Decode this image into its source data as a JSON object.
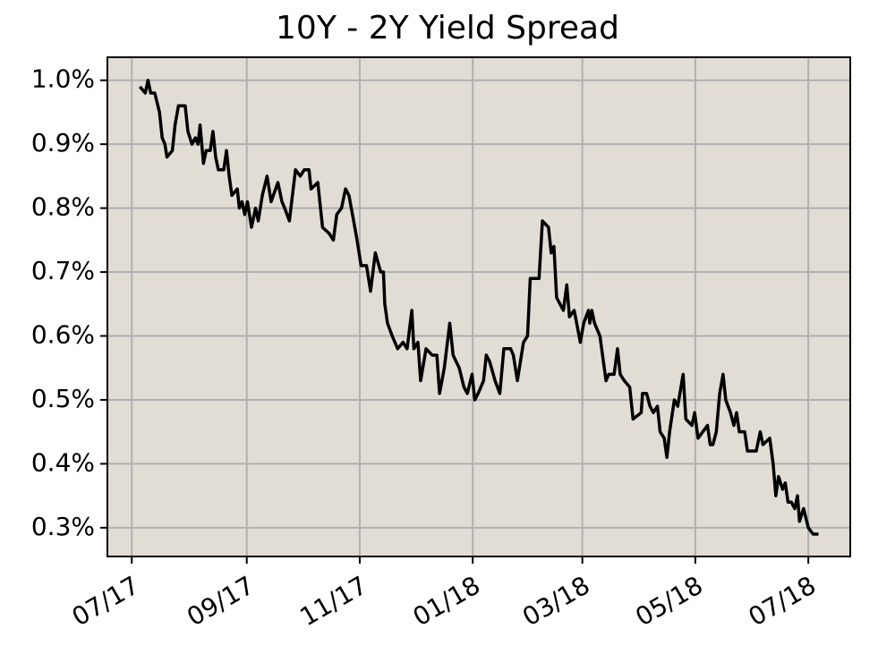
{
  "chart_data": {
    "type": "line",
    "title": "10Y - 2Y Yield Spread",
    "x": [
      2017.508,
      2017.516,
      2017.52,
      2017.524,
      2017.53,
      2017.537,
      2017.541,
      2017.545,
      2017.548,
      2017.556,
      2017.56,
      2017.565,
      2017.575,
      2017.579,
      2017.585,
      2017.59,
      2017.594,
      2017.597,
      2017.602,
      2017.606,
      2017.612,
      2017.616,
      2017.62,
      2017.624,
      2017.632,
      2017.636,
      2017.64,
      2017.644,
      2017.652,
      2017.655,
      2017.659,
      2017.663,
      2017.667,
      2017.673,
      2017.679,
      2017.683,
      2017.689,
      2017.696,
      2017.702,
      2017.712,
      2017.718,
      2017.722,
      2017.729,
      2017.738,
      2017.745,
      2017.751,
      2017.758,
      2017.761,
      2017.771,
      2017.778,
      2017.788,
      2017.794,
      2017.799,
      2017.806,
      2017.812,
      2017.817,
      2017.824,
      2017.829,
      2017.835,
      2017.843,
      2017.849,
      2017.856,
      2017.864,
      2017.868,
      2017.87,
      2017.874,
      2017.881,
      2017.889,
      2017.897,
      2017.903,
      2017.91,
      2017.913,
      2017.919,
      2017.923,
      2017.931,
      2017.94,
      2017.947,
      2017.951,
      2017.958,
      2017.966,
      2017.971,
      2017.98,
      2017.987,
      2017.992,
      2017.999,
      2018.003,
      2018.008,
      2018.016,
      2018.02,
      2018.025,
      2018.033,
      2018.04,
      2018.046,
      2018.056,
      2018.06,
      2018.066,
      2018.075,
      2018.081,
      2018.085,
      2018.098,
      2018.103,
      2018.112,
      2018.116,
      2018.12,
      2018.124,
      2018.134,
      2018.139,
      2018.143,
      2018.15,
      2018.159,
      2018.164,
      2018.171,
      2018.173,
      2018.176,
      2018.18,
      2018.188,
      2018.197,
      2018.201,
      2018.209,
      2018.214,
      2018.218,
      2018.224,
      2018.232,
      2018.237,
      2018.249,
      2018.251,
      2018.257,
      2018.262,
      2018.267,
      2018.273,
      2018.277,
      2018.283,
      2018.287,
      2018.291,
      2018.298,
      2018.303,
      2018.311,
      2018.315,
      2018.324,
      2018.328,
      2018.333,
      2018.34,
      2018.347,
      2018.351,
      2018.355,
      2018.36,
      2018.365,
      2018.37,
      2018.374,
      2018.381,
      2018.386,
      2018.39,
      2018.394,
      2018.402,
      2018.406,
      2018.413,
      2018.419,
      2018.425,
      2018.429,
      2018.439,
      2018.444,
      2018.448,
      2018.452,
      2018.458,
      2018.462,
      2018.466,
      2018.471,
      2018.476,
      2018.48,
      2018.483,
      2018.489,
      2018.496,
      2018.503,
      2018.511
    ],
    "values": [
      0.99,
      0.98,
      1.0,
      0.98,
      0.98,
      0.95,
      0.91,
      0.9,
      0.88,
      0.89,
      0.93,
      0.96,
      0.96,
      0.92,
      0.9,
      0.91,
      0.9,
      0.93,
      0.87,
      0.89,
      0.89,
      0.92,
      0.88,
      0.86,
      0.86,
      0.89,
      0.85,
      0.82,
      0.83,
      0.8,
      0.81,
      0.79,
      0.81,
      0.77,
      0.8,
      0.78,
      0.82,
      0.85,
      0.81,
      0.84,
      0.81,
      0.8,
      0.78,
      0.86,
      0.85,
      0.86,
      0.86,
      0.83,
      0.84,
      0.77,
      0.76,
      0.75,
      0.79,
      0.8,
      0.83,
      0.82,
      0.78,
      0.75,
      0.71,
      0.71,
      0.67,
      0.73,
      0.7,
      0.7,
      0.65,
      0.62,
      0.6,
      0.58,
      0.59,
      0.58,
      0.64,
      0.58,
      0.59,
      0.53,
      0.58,
      0.57,
      0.57,
      0.51,
      0.55,
      0.62,
      0.57,
      0.55,
      0.52,
      0.51,
      0.54,
      0.5,
      0.51,
      0.53,
      0.57,
      0.56,
      0.53,
      0.51,
      0.58,
      0.58,
      0.57,
      0.53,
      0.59,
      0.6,
      0.69,
      0.69,
      0.78,
      0.77,
      0.73,
      0.74,
      0.66,
      0.64,
      0.68,
      0.63,
      0.64,
      0.59,
      0.62,
      0.64,
      0.62,
      0.64,
      0.62,
      0.6,
      0.53,
      0.54,
      0.54,
      0.58,
      0.54,
      0.53,
      0.52,
      0.47,
      0.48,
      0.51,
      0.51,
      0.49,
      0.48,
      0.49,
      0.45,
      0.44,
      0.41,
      0.45,
      0.5,
      0.49,
      0.54,
      0.47,
      0.46,
      0.48,
      0.44,
      0.45,
      0.46,
      0.43,
      0.43,
      0.45,
      0.51,
      0.54,
      0.5,
      0.48,
      0.46,
      0.48,
      0.45,
      0.45,
      0.42,
      0.42,
      0.42,
      0.45,
      0.43,
      0.44,
      0.4,
      0.35,
      0.38,
      0.36,
      0.37,
      0.34,
      0.34,
      0.33,
      0.35,
      0.31,
      0.33,
      0.3,
      0.29,
      0.29
    ],
    "color": "#000000",
    "xlim": [
      2017.46,
      2018.558
    ],
    "xticks": [
      {
        "value": 2017.496,
        "label": "07/17"
      },
      {
        "value": 2017.666,
        "label": "09/17"
      },
      {
        "value": 2017.833,
        "label": "11/17"
      },
      {
        "value": 2018.0,
        "label": "01/18"
      },
      {
        "value": 2018.162,
        "label": "03/18"
      },
      {
        "value": 2018.329,
        "label": "05/18"
      },
      {
        "value": 2018.496,
        "label": "07/18"
      }
    ],
    "ylim": [
      0.255,
      1.036
    ],
    "yticks": [
      {
        "value": 0.3,
        "label": "0.3%"
      },
      {
        "value": 0.4,
        "label": "0.4%"
      },
      {
        "value": 0.5,
        "label": "0.5%"
      },
      {
        "value": 0.6,
        "label": "0.6%"
      },
      {
        "value": 0.7,
        "label": "0.7%"
      },
      {
        "value": 0.8,
        "label": "0.8%"
      },
      {
        "value": 0.9,
        "label": "0.9%"
      },
      {
        "value": 1.0,
        "label": "1.0%"
      }
    ],
    "grid": true
  }
}
